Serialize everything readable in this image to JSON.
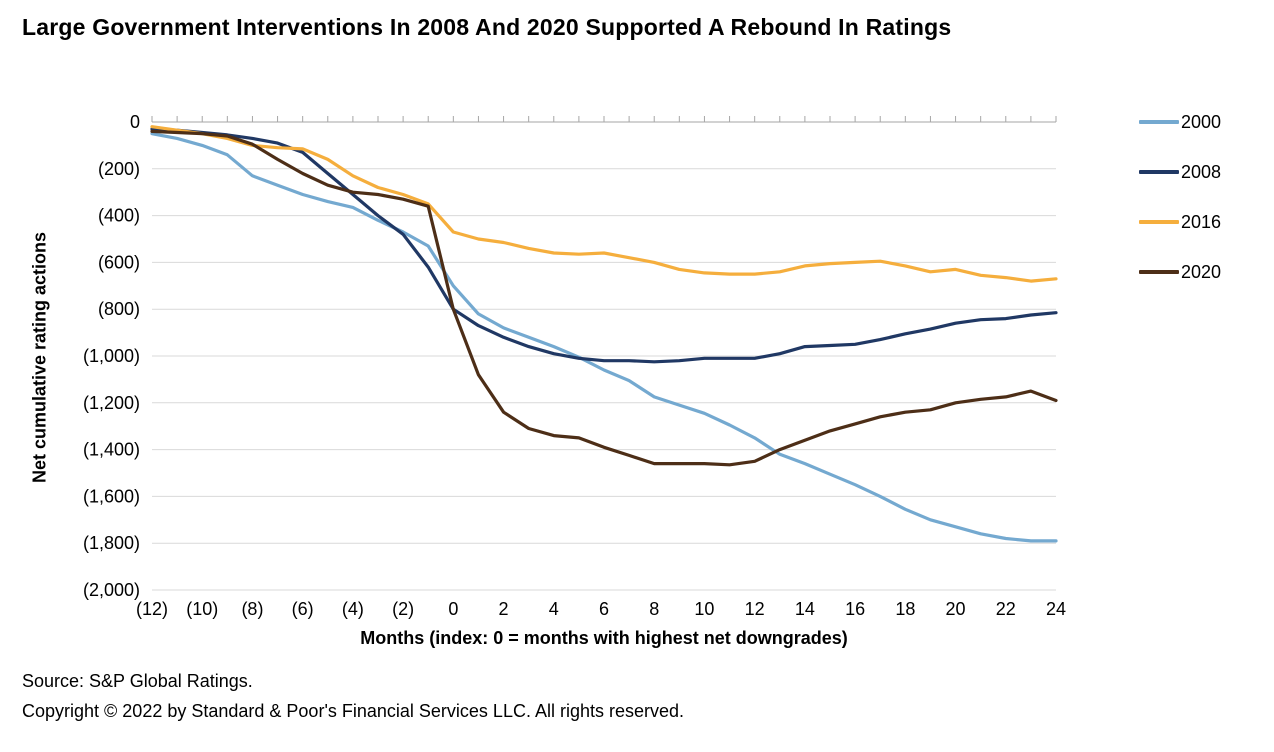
{
  "page": {
    "title": "Large Government Interventions In 2008 And 2020 Supported A Rebound In Ratings"
  },
  "legend": {
    "items": [
      {
        "label": "2000",
        "color": "#74A9D0"
      },
      {
        "label": "2008",
        "color": "#203864"
      },
      {
        "label": "2016",
        "color": "#F5AE3D"
      },
      {
        "label": "2020",
        "color": "#4D2E17"
      }
    ]
  },
  "footer": {
    "source": "Source: S&P Global Ratings.",
    "copyright": "Copyright © 2022 by Standard & Poor's Financial Services LLC. All rights reserved."
  },
  "chart_data": {
    "type": "line",
    "title": "Large Government Interventions In 2008 And 2020 Supported A Rebound In Ratings",
    "xlabel": "Months (index: 0 = months with highest net downgrades)",
    "ylabel": "Net cumulative rating actions",
    "xlim": [
      -12,
      24
    ],
    "ylim": [
      -2000,
      0
    ],
    "x_tick_step": 2,
    "y_tick_step": 200,
    "grid": "horizontal",
    "legend_position": "right",
    "x_tick_labels": [
      "(12)",
      "(10)",
      "(8)",
      "(6)",
      "(4)",
      "(2)",
      "0",
      "2",
      "4",
      "6",
      "8",
      "10",
      "12",
      "14",
      "16",
      "18",
      "20",
      "22",
      "24"
    ],
    "y_tick_labels": [
      "0",
      "(200)",
      "(400)",
      "(600)",
      "(800)",
      "(1,000)",
      "(1,200)",
      "(1,400)",
      "(1,600)",
      "(1,800)",
      "(2,000)"
    ],
    "x": [
      -12,
      -11,
      -10,
      -9,
      -8,
      -7,
      -6,
      -5,
      -4,
      -3,
      -2,
      -1,
      0,
      1,
      2,
      3,
      4,
      5,
      6,
      7,
      8,
      9,
      10,
      11,
      12,
      13,
      14,
      15,
      16,
      17,
      18,
      19,
      20,
      21,
      22,
      23,
      24
    ],
    "series": [
      {
        "name": "2000",
        "color": "#74A9D0",
        "values": [
          -50,
          -70,
          -100,
          -140,
          -230,
          -270,
          -310,
          -340,
          -365,
          -420,
          -470,
          -530,
          -700,
          -820,
          -880,
          -920,
          -960,
          -1005,
          -1060,
          -1105,
          -1175,
          -1210,
          -1245,
          -1295,
          -1350,
          -1420,
          -1460,
          -1505,
          -1550,
          -1600,
          -1655,
          -1700,
          -1730,
          -1760,
          -1780,
          -1790,
          -1790
        ]
      },
      {
        "name": "2008",
        "color": "#203864",
        "values": [
          -30,
          -35,
          -45,
          -55,
          -70,
          -90,
          -130,
          -220,
          -310,
          -400,
          -480,
          -620,
          -800,
          -870,
          -920,
          -960,
          -990,
          -1010,
          -1020,
          -1020,
          -1025,
          -1020,
          -1010,
          -1010,
          -1010,
          -990,
          -960,
          -955,
          -950,
          -930,
          -905,
          -885,
          -860,
          -845,
          -840,
          -825,
          -815
        ]
      },
      {
        "name": "2016",
        "color": "#F5AE3D",
        "values": [
          -20,
          -35,
          -50,
          -70,
          -100,
          -110,
          -115,
          -160,
          -230,
          -280,
          -310,
          -350,
          -470,
          -500,
          -515,
          -540,
          -560,
          -565,
          -560,
          -580,
          -600,
          -630,
          -645,
          -650,
          -650,
          -640,
          -615,
          -605,
          -600,
          -595,
          -615,
          -640,
          -630,
          -655,
          -665,
          -680,
          -670
        ]
      },
      {
        "name": "2020",
        "color": "#4D2E17",
        "values": [
          -40,
          -45,
          -50,
          -60,
          -95,
          -160,
          -220,
          -270,
          -300,
          -310,
          -330,
          -360,
          -800,
          -1080,
          -1240,
          -1310,
          -1340,
          -1350,
          -1390,
          -1425,
          -1460,
          -1460,
          -1460,
          -1465,
          -1450,
          -1400,
          -1360,
          -1320,
          -1290,
          -1260,
          -1240,
          -1230,
          -1200,
          -1185,
          -1175,
          -1150,
          -1190
        ]
      }
    ]
  }
}
